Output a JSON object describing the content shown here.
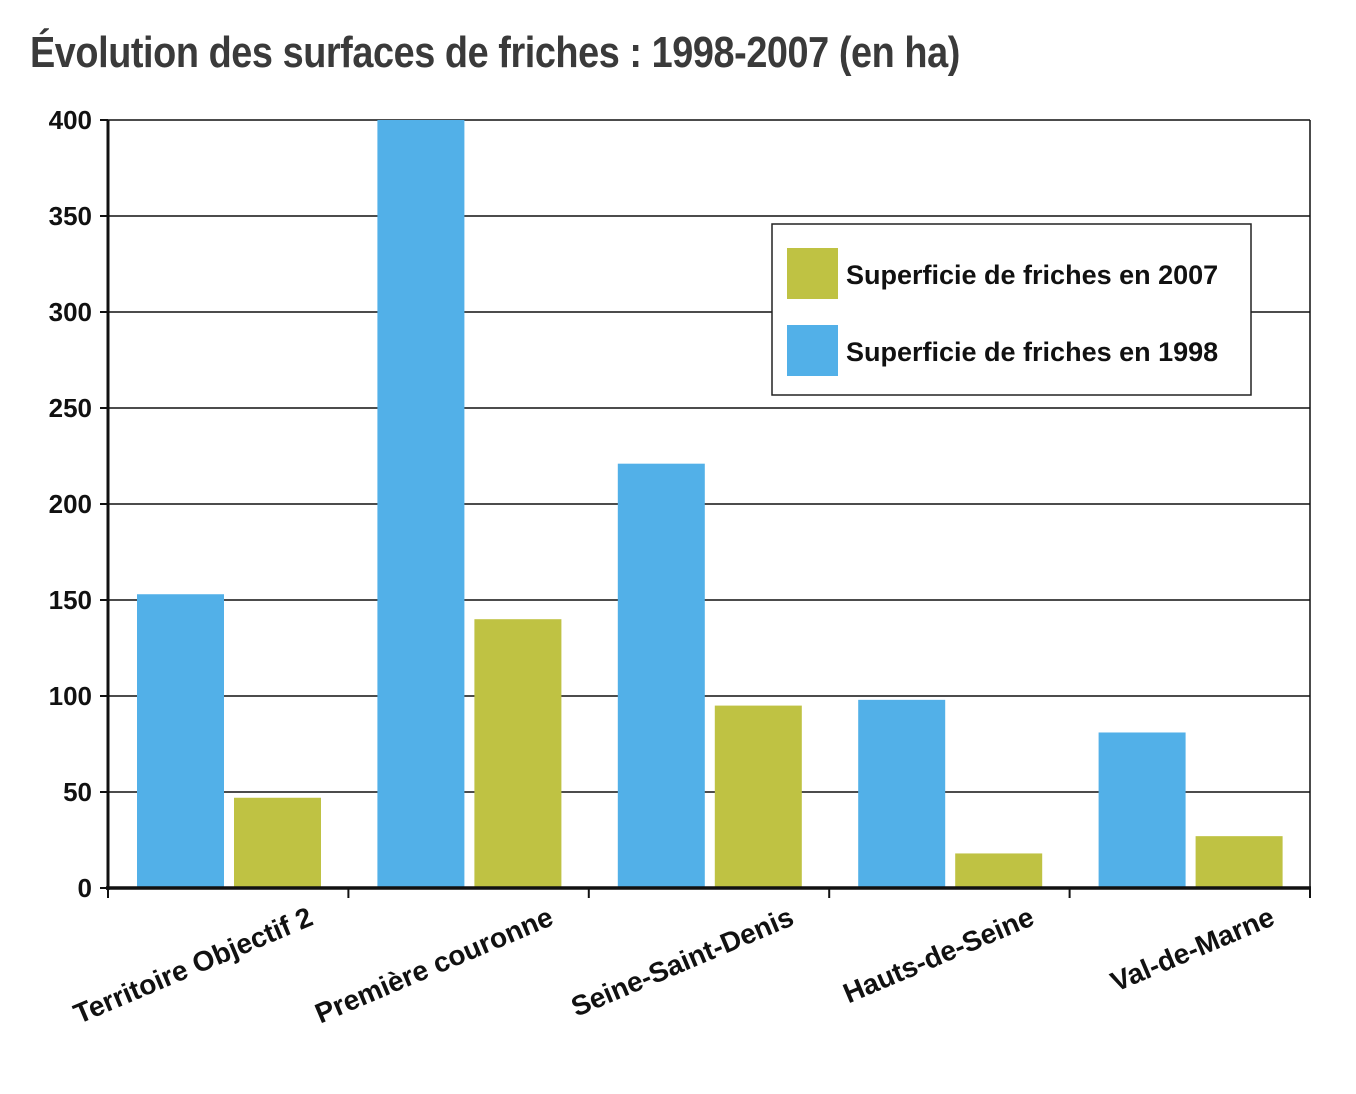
{
  "chart_data": {
    "type": "bar",
    "title": "Évolution des surfaces de friches : 1998-2007 (en ha)",
    "xlabel": "",
    "ylabel": "",
    "categories": [
      "Territoire Objectif 2",
      "Première couronne",
      "Seine-Saint-Denis",
      "Hauts-de-Seine",
      "Val-de-Marne"
    ],
    "series": [
      {
        "name": "Superficie de friches en 1998",
        "color": "#52b0e8",
        "values": [
          153,
          400,
          221,
          98,
          81
        ]
      },
      {
        "name": "Superficie de friches en 2007",
        "color": "#bfc243",
        "values": [
          47,
          140,
          95,
          18,
          27
        ]
      }
    ],
    "legend_order": [
      1,
      0
    ],
    "ylim": [
      0,
      400
    ],
    "yticks": [
      0,
      50,
      100,
      150,
      200,
      250,
      300,
      350,
      400
    ],
    "grid": true,
    "legend_position": "top-right"
  }
}
